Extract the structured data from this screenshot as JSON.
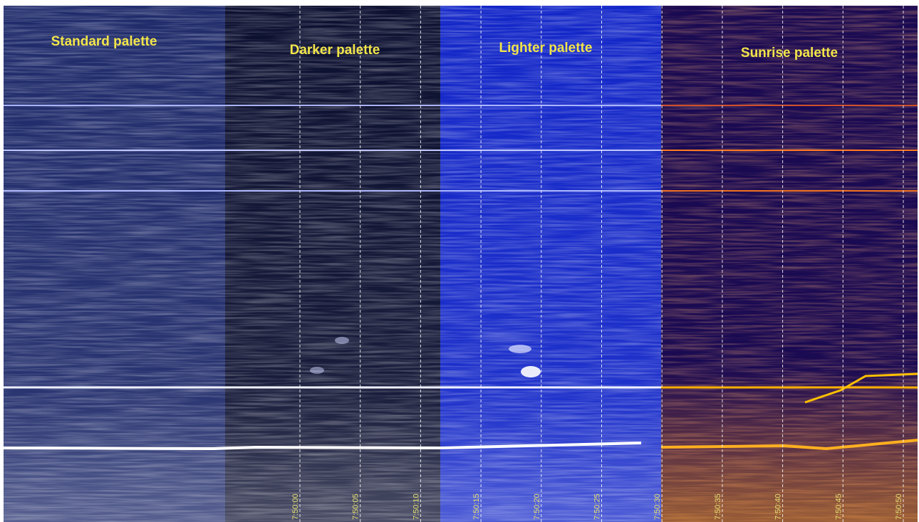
{
  "panels": [
    {
      "title": "Standard palette"
    },
    {
      "title": "Darker palette"
    },
    {
      "title": "Lighter palette"
    },
    {
      "title": "Sunrise palette"
    }
  ],
  "time_labels": [
    "7:50:00",
    "7:50:05",
    "7:50:10",
    "7:50:15",
    "7:50:20",
    "7:50:25",
    "7:50:30",
    "7:50:35",
    "7:50:40",
    "7:50:45",
    "7:50:50"
  ]
}
